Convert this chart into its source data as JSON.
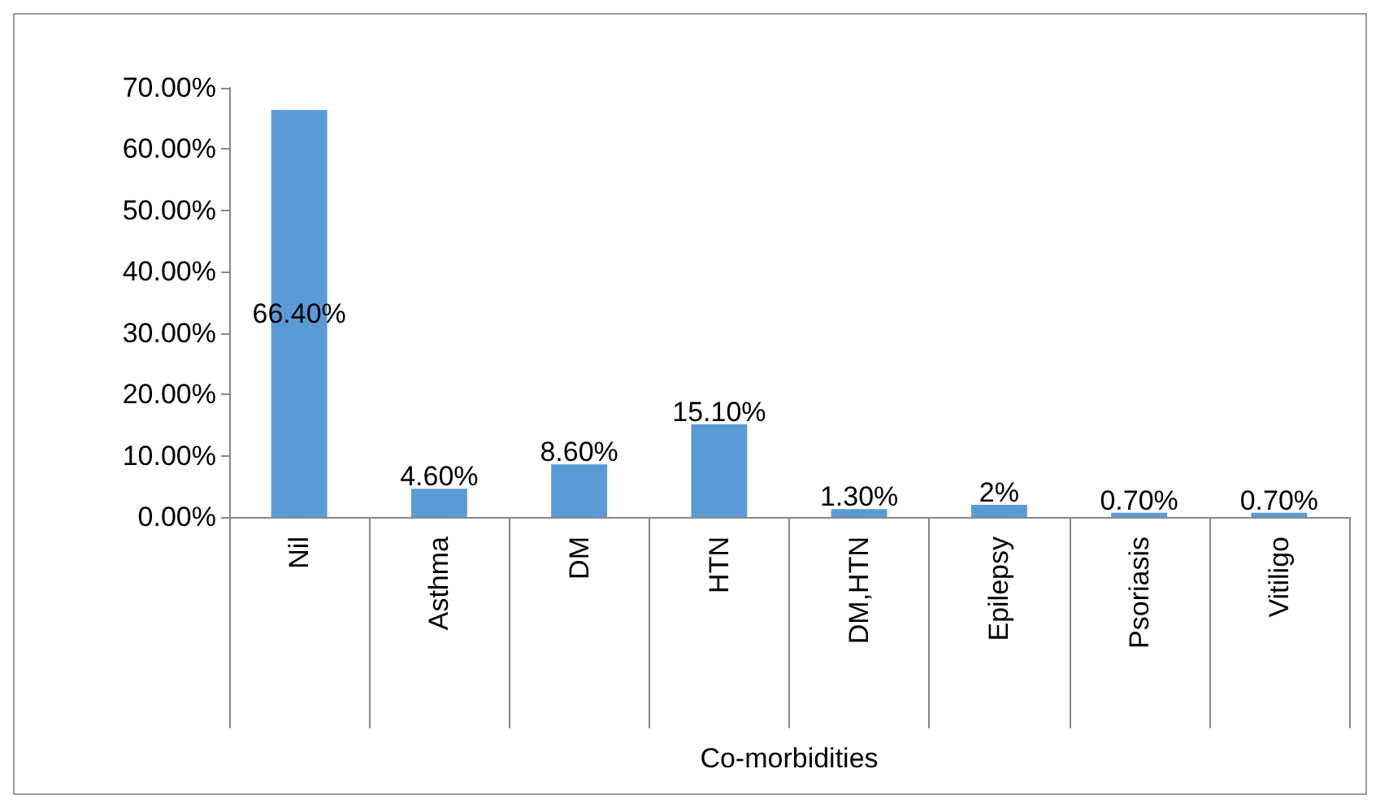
{
  "chart_data": {
    "type": "bar",
    "xlabel": "Co-morbidities",
    "categories": [
      "Nil",
      "Asthma",
      "DM",
      "HTN",
      "DM,HTN",
      "Epilepsy",
      "Psoriasis",
      "Vitiligo"
    ],
    "values": [
      66.4,
      4.6,
      8.6,
      15.1,
      1.3,
      2,
      0.7,
      0.7
    ],
    "value_labels": [
      "66.40%",
      "4.60%",
      "8.60%",
      "15.10%",
      "1.30%",
      "2%",
      "0.70%",
      "0.70%"
    ],
    "color": "#5b9bd5",
    "ylim": [
      0,
      70
    ],
    "yticks": [
      {
        "value": 0,
        "label": "0.00%"
      },
      {
        "value": 10,
        "label": "10.00%"
      },
      {
        "value": 20,
        "label": "20.00%"
      },
      {
        "value": 30,
        "label": "30.00%"
      },
      {
        "value": 40,
        "label": "40.00%"
      },
      {
        "value": 50,
        "label": "50.00%"
      },
      {
        "value": 60,
        "label": "60.00%"
      },
      {
        "value": 70,
        "label": "70.00%"
      }
    ],
    "grid": false
  }
}
